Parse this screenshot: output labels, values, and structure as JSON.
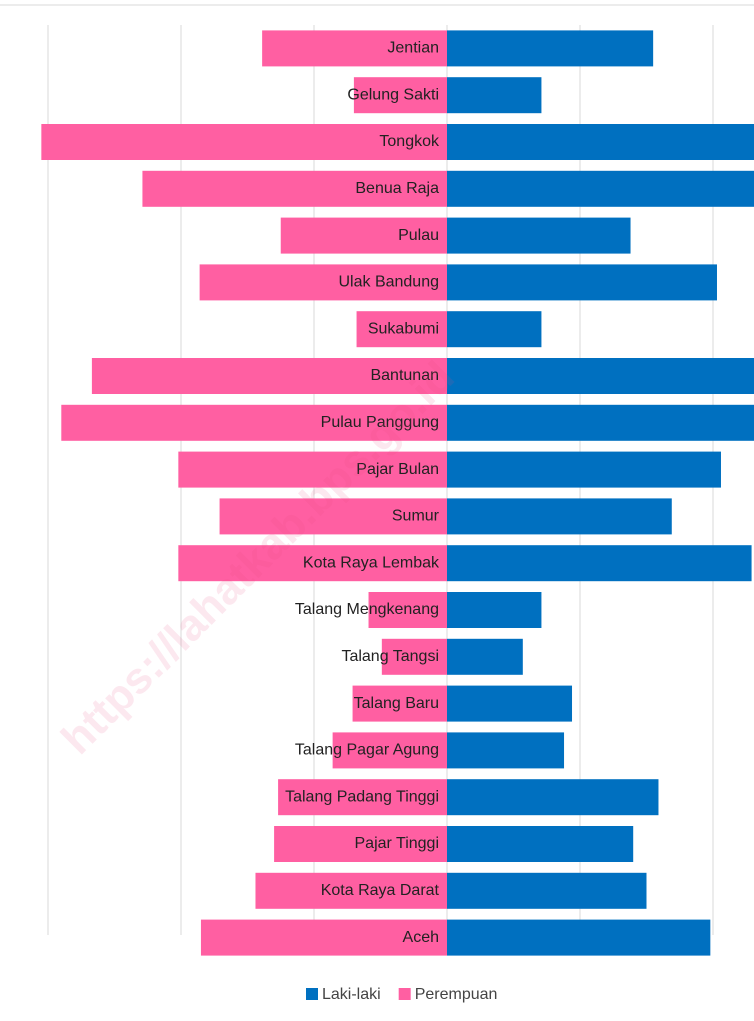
{
  "chart_data": {
    "type": "bar",
    "orientation": "horizontal-pyramid",
    "categories": [
      "Jentian",
      "Gelung Sakti",
      "Tongkok",
      "Benua Raja",
      "Pulau",
      "Ulak Bandung",
      "Sukabumi",
      "Bantunan",
      "Pulau Panggung",
      "Pajar Bulan",
      "Sumur",
      "Kota Raya Lembak",
      "Talang Mengkenang",
      "Talang Tangsi",
      "Talang Baru",
      "Talang Pagar Agung",
      "Talang Padang Tinggi",
      "Pajar Tinggi",
      "Kota Raya Darat",
      "Aceh"
    ],
    "series": [
      {
        "name": "Laki-laki",
        "color": "#0070c0",
        "side": "right",
        "values": [
          155,
          71,
          240,
          235,
          138,
          203,
          71,
          245,
          250,
          206,
          169,
          229,
          71,
          57,
          94,
          88,
          159,
          140,
          150,
          198
        ]
      },
      {
        "name": "Perempuan",
        "color": "#ff5fa2",
        "side": "left",
        "values": [
          139,
          70,
          305,
          229,
          125,
          186,
          68,
          267,
          290,
          202,
          171,
          202,
          59,
          49,
          71,
          86,
          127,
          130,
          144,
          185
        ]
      }
    ],
    "xlim": [
      -310,
      310
    ],
    "xticks": [
      -300,
      -200,
      -100,
      0,
      100,
      200,
      300
    ],
    "grid": true,
    "legend": "bottom",
    "watermark": "https://lahatkab.bps.go.id"
  }
}
